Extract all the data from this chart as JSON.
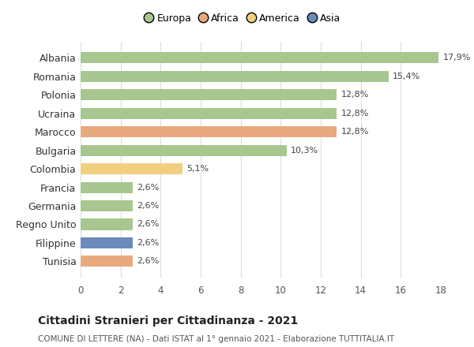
{
  "countries": [
    "Albania",
    "Romania",
    "Polonia",
    "Ucraina",
    "Marocco",
    "Bulgaria",
    "Colombia",
    "Francia",
    "Germania",
    "Regno Unito",
    "Filippine",
    "Tunisia"
  ],
  "values": [
    17.9,
    15.4,
    12.8,
    12.8,
    12.8,
    10.3,
    5.1,
    2.6,
    2.6,
    2.6,
    2.6,
    2.6
  ],
  "labels": [
    "17,9%",
    "15,4%",
    "12,8%",
    "12,8%",
    "12,8%",
    "10,3%",
    "5,1%",
    "2,6%",
    "2,6%",
    "2,6%",
    "2,6%",
    "2,6%"
  ],
  "colors": [
    "#a8c68f",
    "#a8c68f",
    "#a8c68f",
    "#a8c68f",
    "#e8a97e",
    "#a8c68f",
    "#f0d080",
    "#a8c68f",
    "#a8c68f",
    "#a8c68f",
    "#6b8cba",
    "#e8a97e"
  ],
  "legend_labels": [
    "Europa",
    "Africa",
    "America",
    "Asia"
  ],
  "legend_colors": [
    "#a8c68f",
    "#e8a97e",
    "#f0d080",
    "#6b8cba"
  ],
  "title": "Cittadini Stranieri per Cittadinanza - 2021",
  "subtitle": "COMUNE DI LETTERE (NA) - Dati ISTAT al 1° gennaio 2021 - Elaborazione TUTTITALIA.IT",
  "xlim": [
    0,
    18
  ],
  "xticks": [
    0,
    2,
    4,
    6,
    8,
    10,
    12,
    14,
    16,
    18
  ],
  "background_color": "#ffffff",
  "grid_color": "#dddddd",
  "bar_height": 0.6
}
